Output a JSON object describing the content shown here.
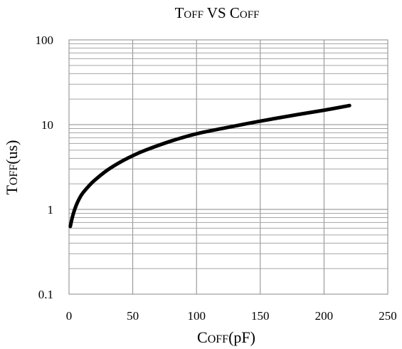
{
  "chart_data": {
    "type": "line",
    "title": {
      "main": "T",
      "sub": "OFF",
      "mid": " VS ",
      "main2": "C",
      "sub2": "OFF"
    },
    "xlabel": {
      "main": "C",
      "sub": "OFF",
      "rest": "(pF)"
    },
    "ylabel": {
      "main": "T",
      "sub": "OFF",
      "rest": "(us)"
    },
    "xlim": [
      0,
      250
    ],
    "ylim": [
      0.1,
      100
    ],
    "yscale": "log",
    "grid": true,
    "x_ticks": [
      "0",
      "50",
      "100",
      "150",
      "200",
      "250"
    ],
    "y_ticks": [
      "0.1",
      "1",
      "10",
      "100"
    ],
    "series": [
      {
        "color": "#000000",
        "x": [
          1,
          3,
          6,
          10,
          15,
          20,
          30,
          40,
          50,
          60,
          80,
          100,
          120,
          150,
          180,
          200,
          220
        ],
        "y": [
          0.63,
          0.85,
          1.15,
          1.5,
          1.85,
          2.2,
          2.9,
          3.6,
          4.3,
          5.0,
          6.4,
          7.8,
          9.0,
          11.0,
          13.2,
          14.8,
          16.8
        ]
      }
    ]
  }
}
